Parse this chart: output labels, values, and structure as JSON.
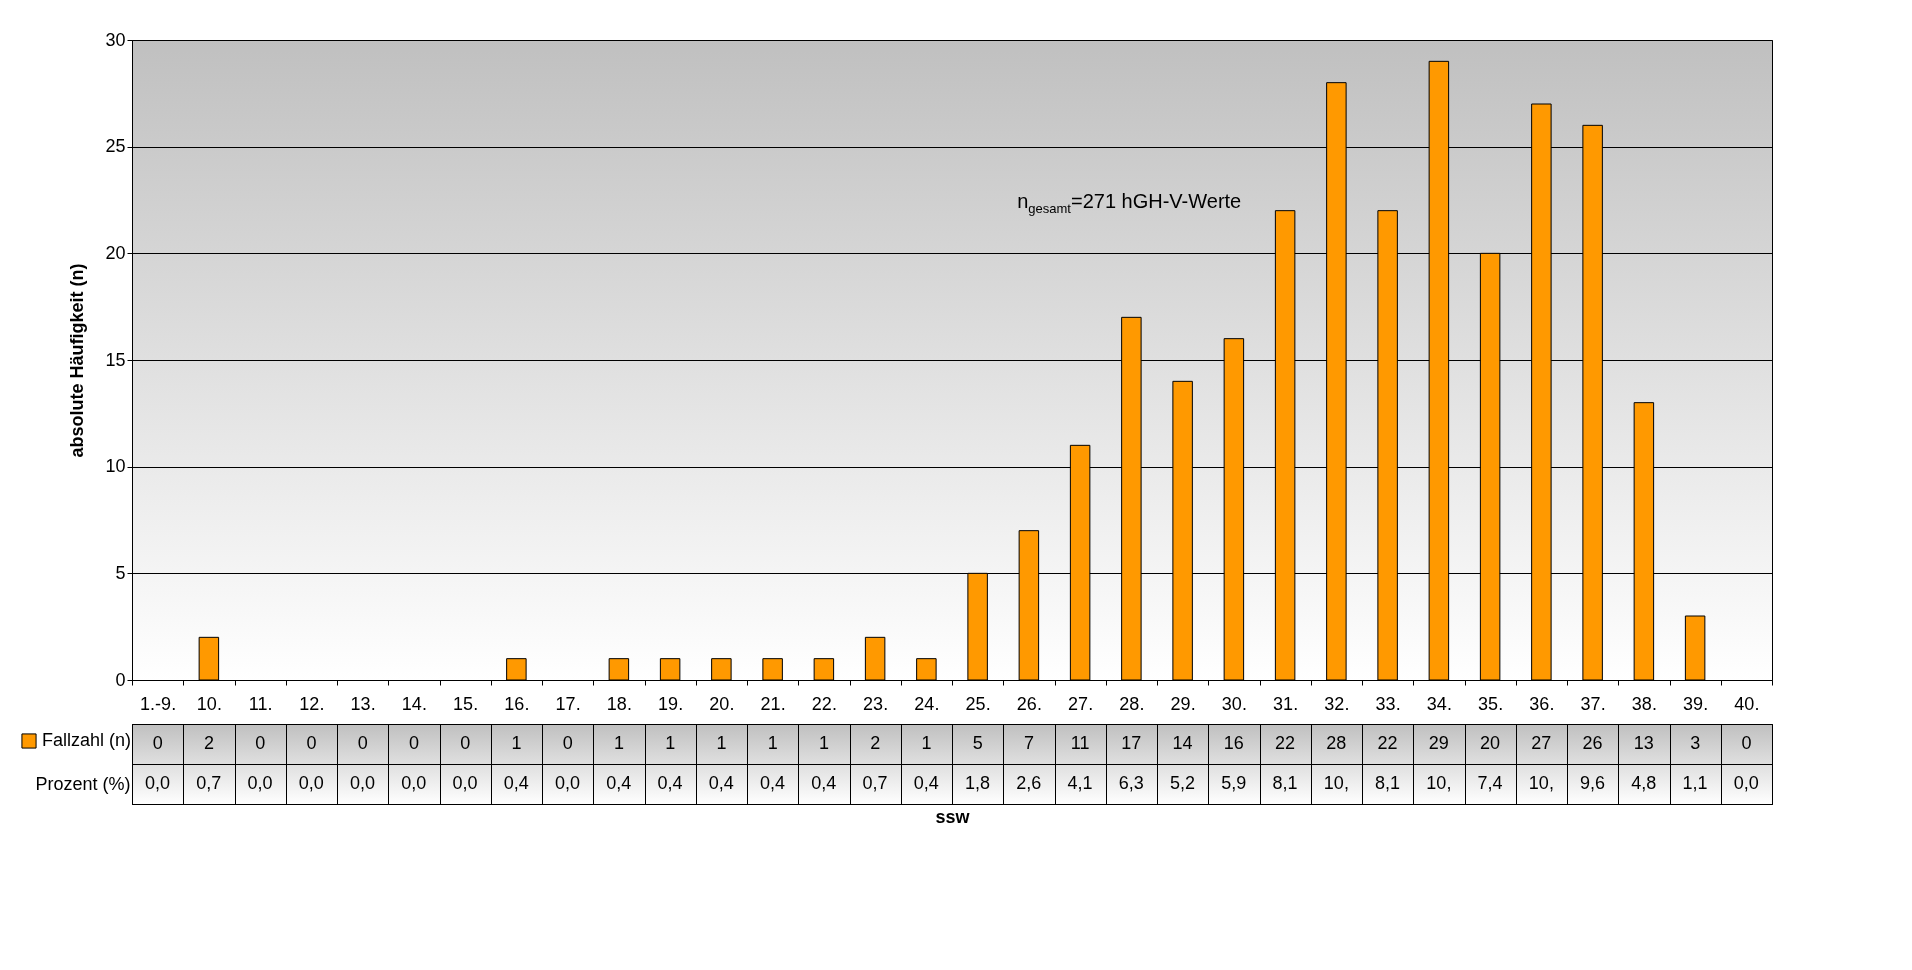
{
  "chart_data": {
    "type": "bar",
    "ylabel": "absolute Häufigkeit (n)",
    "categories": [
      "1.-9.",
      "10.",
      "11.",
      "12.",
      "13.",
      "14.",
      "15.",
      "16.",
      "17.",
      "18.",
      "19.",
      "20.",
      "21.",
      "22.",
      "23.",
      "24.",
      "25.",
      "26.",
      "27.",
      "28.",
      "29.",
      "30.",
      "31.",
      "32.",
      "33.",
      "34.",
      "35.",
      "36.",
      "37.",
      "38.",
      "39.",
      "40."
    ],
    "series": [
      {
        "name": "Fallzahl (n)",
        "color": "#ff9900",
        "values": [
          0,
          2,
          0,
          0,
          0,
          0,
          0,
          1,
          0,
          1,
          1,
          1,
          1,
          1,
          2,
          1,
          5,
          7,
          11,
          17,
          14,
          16,
          22,
          28,
          22,
          29,
          20,
          27,
          26,
          13,
          3,
          0
        ]
      }
    ],
    "data_labels": true,
    "ylim": [
      0,
      30
    ],
    "yticks": [
      0,
      5,
      10,
      15,
      20,
      25,
      30
    ],
    "grid": "y",
    "legend": "bottom left",
    "annotations": [
      "n$_{gesamt}$=271 hGH-V-Werte",
      "Prozent (%)",
      "ssw",
      "0,0",
      "0,7",
      "0,0",
      "0,0",
      "0,0",
      "0,0",
      "0,0",
      "0,4",
      "0,0",
      "0,4",
      "0,4",
      "0,4",
      "0,4",
      "0,4",
      "0,7",
      "0,4",
      "1,8",
      "2,6",
      "4,1",
      "6,3",
      "5,2",
      "5,9",
      "8,1",
      "10,",
      "8,1",
      "10,",
      "7,4",
      "10,",
      "9,6",
      "4,8",
      "1,1",
      "0,0"
    ]
  }
}
